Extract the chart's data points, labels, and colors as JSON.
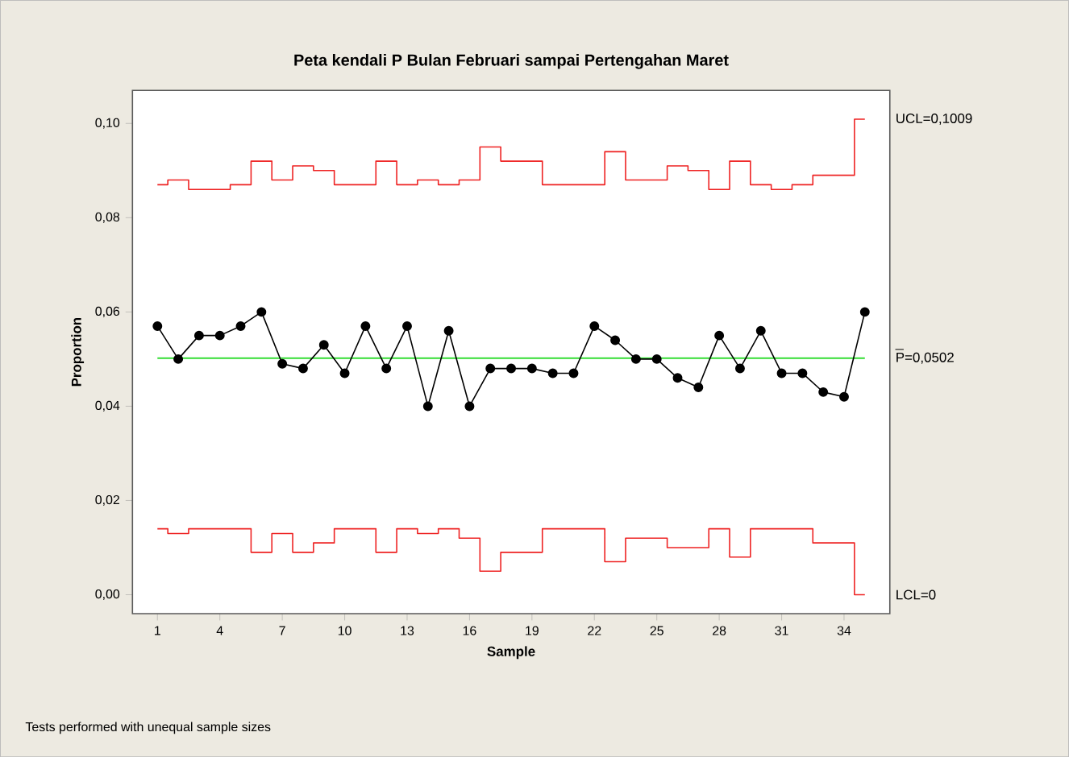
{
  "chart_data": {
    "type": "line",
    "title": "Peta kendali P Bulan Februari sampai Pertengahan Maret",
    "xlabel": "Sample",
    "ylabel": "Proportion",
    "annotations": [
      "Tests performed with unequal sample sizes"
    ],
    "x": [
      1,
      2,
      3,
      4,
      5,
      6,
      7,
      8,
      9,
      10,
      11,
      12,
      13,
      14,
      15,
      16,
      17,
      18,
      19,
      20,
      21,
      22,
      23,
      24,
      25,
      26,
      27,
      28,
      29,
      30,
      31,
      32,
      33,
      34,
      35
    ],
    "series": [
      {
        "color": "#000000",
        "marker": "circle",
        "values": [
          0.057,
          0.05,
          0.055,
          0.055,
          0.057,
          0.06,
          0.049,
          0.048,
          0.053,
          0.047,
          0.057,
          0.048,
          0.057,
          0.04,
          0.056,
          0.04,
          0.048,
          0.048,
          0.048,
          0.047,
          0.047,
          0.057,
          0.054,
          0.05,
          0.05,
          0.046,
          0.044,
          0.055,
          0.048,
          0.056,
          0.047,
          0.047,
          0.043,
          0.042,
          0.06
        ]
      },
      {
        "type": "step",
        "name": "UCL=0,1009",
        "color": "#ee2222",
        "marker": "none",
        "values": [
          0.087,
          0.088,
          0.086,
          0.086,
          0.087,
          0.092,
          0.088,
          0.091,
          0.09,
          0.087,
          0.087,
          0.092,
          0.087,
          0.088,
          0.087,
          0.088,
          0.095,
          0.092,
          0.092,
          0.087,
          0.087,
          0.087,
          0.094,
          0.088,
          0.088,
          0.091,
          0.09,
          0.086,
          0.092,
          0.087,
          0.086,
          0.087,
          0.089,
          0.089,
          0.1009
        ]
      },
      {
        "type": "step",
        "name": "LCL=0",
        "color": "#ee2222",
        "marker": "none",
        "values": [
          0.014,
          0.013,
          0.014,
          0.014,
          0.014,
          0.009,
          0.013,
          0.009,
          0.011,
          0.014,
          0.014,
          0.009,
          0.014,
          0.013,
          0.014,
          0.012,
          0.005,
          0.009,
          0.009,
          0.014,
          0.014,
          0.014,
          0.007,
          0.012,
          0.012,
          0.01,
          0.01,
          0.014,
          0.008,
          0.014,
          0.014,
          0.014,
          0.011,
          0.011,
          0
        ]
      }
    ],
    "ref_lines": [
      {
        "axis": "y",
        "value": 0.0502,
        "label": "P=0,0502",
        "color": "#33dd33"
      }
    ],
    "xlim": [
      -0.2,
      36.2
    ],
    "xticks": [
      1,
      4,
      7,
      10,
      13,
      16,
      19,
      22,
      25,
      28,
      31,
      34
    ],
    "ylim": [
      -0.004,
      0.107
    ],
    "yticks": [
      {
        "value": 0,
        "label": "0,00"
      },
      {
        "value": 0.02,
        "label": "0,02"
      },
      {
        "value": 0.04,
        "label": "0,04"
      },
      {
        "value": 0.06,
        "label": "0,06"
      },
      {
        "value": 0.08,
        "label": "0,08"
      },
      {
        "value": 0.1,
        "label": "0,10"
      }
    ],
    "grid": false
  }
}
